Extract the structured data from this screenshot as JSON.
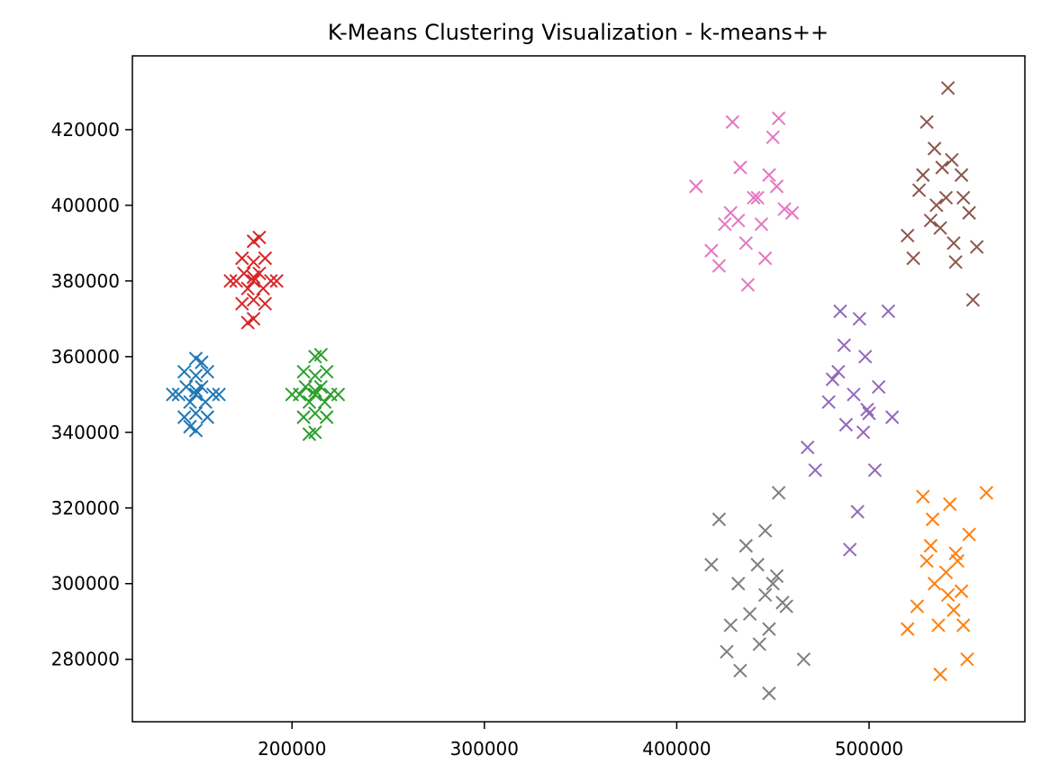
{
  "chart_data": {
    "type": "scatter",
    "title": "K-Means Clustering Visualization - k-means++",
    "xlabel": "",
    "ylabel": "",
    "xlim": [
      117000,
      581000
    ],
    "ylim": [
      263500,
      439500
    ],
    "x_ticks": [
      200000,
      300000,
      400000,
      500000
    ],
    "y_ticks": [
      280000,
      300000,
      320000,
      340000,
      360000,
      380000,
      400000,
      420000
    ],
    "x_tick_labels": [
      "200000",
      "300000",
      "400000",
      "500000"
    ],
    "y_tick_labels": [
      "280000",
      "300000",
      "320000",
      "340000",
      "360000",
      "380000",
      "400000",
      "420000"
    ],
    "grid": false,
    "legend": "none",
    "marker": "x",
    "series": [
      {
        "color": "#1f77b4",
        "x": [
          150000,
          141000,
          159000,
          150000,
          150000,
          144000,
          156000,
          144000,
          156000,
          147000,
          153000,
          150000,
          150000,
          138000,
          162000,
          147000,
          153000,
          145000,
          155000,
          150000
        ],
        "y": [
          350000,
          350000,
          350000,
          340500,
          359500,
          344000,
          344000,
          356000,
          356000,
          348000,
          352000,
          345000,
          355000,
          350000,
          350000,
          341500,
          358500,
          352000,
          348000,
          351000
        ]
      },
      {
        "color": "#ff7f0e",
        "x": [
          540000,
          532000,
          548000,
          525000,
          552000,
          536000,
          545000,
          520000,
          561000,
          537000,
          542000,
          528000,
          551000,
          534000,
          546000,
          533000,
          544000,
          530000,
          549000,
          541000
        ],
        "y": [
          303000,
          310000,
          298000,
          294000,
          313000,
          289000,
          308000,
          288000,
          324000,
          276000,
          321000,
          323000,
          280000,
          300000,
          306000,
          317000,
          293000,
          306000,
          289000,
          297000
        ]
      },
      {
        "color": "#2ca02c",
        "x": [
          212000,
          204000,
          220000,
          212000,
          212000,
          206000,
          218000,
          206000,
          218000,
          209000,
          215000,
          212000,
          212000,
          200000,
          224000,
          209000,
          215000,
          207000,
          217000,
          212000
        ],
        "y": [
          350000,
          350000,
          350000,
          340000,
          360000,
          344000,
          344000,
          356000,
          356000,
          348000,
          352000,
          345000,
          355000,
          350000,
          350000,
          339500,
          360500,
          352000,
          348000,
          351000
        ]
      },
      {
        "color": "#d62728",
        "x": [
          180000,
          171000,
          189000,
          180000,
          180000,
          174000,
          186000,
          174000,
          186000,
          177000,
          183000,
          180000,
          180000,
          168000,
          192000,
          177000,
          183000,
          175000,
          185000,
          180000
        ],
        "y": [
          380000,
          380000,
          380000,
          370000,
          390500,
          374000,
          374000,
          386000,
          386000,
          378000,
          382000,
          375000,
          385000,
          380000,
          380000,
          369000,
          391500,
          382000,
          378000,
          381000
        ]
      },
      {
        "color": "#9467bd",
        "x": [
          492000,
          484000,
          500000,
          488000,
          498000,
          479000,
          505000,
          495000,
          485000,
          510000,
          472000,
          468000,
          490000,
          494000,
          503000,
          487000,
          497000,
          481000,
          512000,
          499000
        ],
        "y": [
          350000,
          356000,
          345000,
          342000,
          360000,
          348000,
          352000,
          370000,
          372000,
          372000,
          330000,
          336000,
          309000,
          319000,
          330000,
          363000,
          340000,
          354000,
          344000,
          346000
        ]
      },
      {
        "color": "#8c564b",
        "x": [
          540000,
          532000,
          548000,
          538000,
          544000,
          526000,
          552000,
          530000,
          534000,
          541000,
          554000,
          545000,
          520000,
          537000,
          549000,
          528000,
          543000,
          556000,
          523000,
          535000
        ],
        "y": [
          402000,
          396000,
          408000,
          410000,
          390000,
          404000,
          398000,
          422000,
          415000,
          431000,
          375000,
          385000,
          392000,
          394000,
          402000,
          408000,
          412000,
          389000,
          386000,
          400000
        ]
      },
      {
        "color": "#e377c2",
        "x": [
          440000,
          432000,
          448000,
          436000,
          452000,
          428000,
          444000,
          418000,
          410000,
          453000,
          429000,
          437000,
          450000,
          422000,
          456000,
          446000,
          433000,
          442000,
          425000,
          460000
        ],
        "y": [
          402000,
          396000,
          408000,
          390000,
          405000,
          398000,
          395000,
          388000,
          405000,
          423000,
          422000,
          379000,
          418000,
          384000,
          399000,
          386000,
          410000,
          402000,
          395000,
          398000
        ]
      },
      {
        "color": "#7f7f7f",
        "x": [
          446000,
          438000,
          452000,
          442000,
          448000,
          432000,
          457000,
          422000,
          418000,
          453000,
          426000,
          433000,
          448000,
          466000,
          446000,
          436000,
          443000,
          455000,
          428000,
          450000
        ],
        "y": [
          297000,
          292000,
          302000,
          305000,
          288000,
          300000,
          294000,
          317000,
          305000,
          324000,
          282000,
          277000,
          271000,
          280000,
          314000,
          310000,
          284000,
          295000,
          289000,
          300000
        ]
      }
    ]
  }
}
